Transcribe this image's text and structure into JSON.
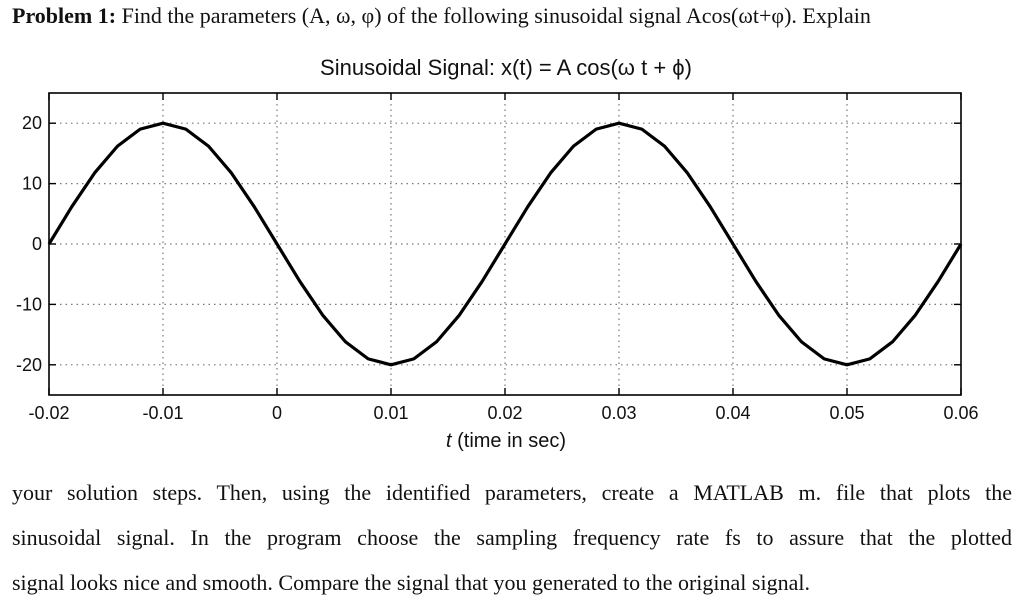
{
  "problem": {
    "label": "Problem 1:",
    "text": " Find the parameters (A, ω, φ) of the following sinusoidal signal Acos(ωt+φ). Explain"
  },
  "paragraph": {
    "lines": [
      "your solution steps. Then, using the identified parameters, create a MATLAB m. file that plots the",
      "sinusoidal signal. In the program choose the sampling frequency rate fs to assure that the plotted",
      "signal looks nice and smooth. Compare the signal that you generated to the original signal."
    ]
  },
  "chart_data": {
    "type": "line",
    "title": "Sinusoidal Signal:  x(t) = A cos(ω t + ϕ)",
    "xlabel_italic": "t",
    "xlabel": "  (time in sec)",
    "ylabel": "",
    "xlim": [
      -0.02,
      0.06
    ],
    "ylim": [
      -25,
      25
    ],
    "x_ticks": [
      -0.02,
      -0.01,
      0,
      0.01,
      0.02,
      0.03,
      0.04,
      0.05,
      0.06
    ],
    "x_tick_labels": [
      "-0.02",
      "-0.01",
      "0",
      "0.01",
      "0.02",
      "0.03",
      "0.04",
      "0.05",
      "0.06"
    ],
    "y_ticks": [
      20,
      10,
      0,
      -10,
      -20
    ],
    "y_tick_labels": [
      "20",
      "10",
      "0",
      "-10",
      "-20"
    ],
    "grid": "dotted",
    "legend": "none",
    "line_color": "#000000",
    "series": [
      {
        "x": [
          -0.02,
          -0.018,
          -0.016,
          -0.014,
          -0.012,
          -0.01,
          -0.008,
          -0.006,
          -0.004,
          -0.002,
          0,
          0.002,
          0.004,
          0.006,
          0.008,
          0.01,
          0.012,
          0.014,
          0.016,
          0.018,
          0.02,
          0.022,
          0.024,
          0.026,
          0.028,
          0.03,
          0.032,
          0.034,
          0.036,
          0.038,
          0.04,
          0.042,
          0.044,
          0.046,
          0.048,
          0.05,
          0.052,
          0.054,
          0.056,
          0.058,
          0.06
        ],
        "y": [
          0,
          6.18,
          11.76,
          16.18,
          19.02,
          20,
          19.02,
          16.18,
          11.76,
          6.18,
          0,
          -6.18,
          -11.76,
          -16.18,
          -19.02,
          -20,
          -19.02,
          -16.18,
          -11.76,
          -6.18,
          0,
          6.18,
          11.76,
          16.18,
          19.02,
          20,
          19.02,
          16.18,
          11.76,
          6.18,
          0,
          -6.18,
          -11.76,
          -16.18,
          -19.02,
          -20,
          -19.02,
          -16.18,
          -11.76,
          -6.18,
          0
        ]
      }
    ]
  }
}
